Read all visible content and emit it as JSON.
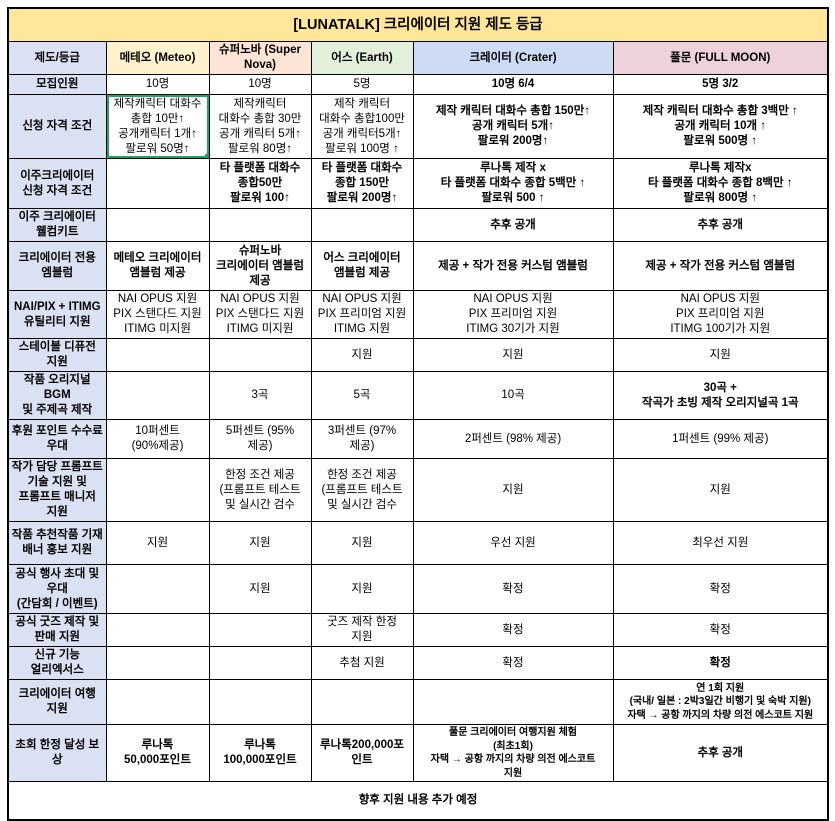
{
  "title": "[LUNATALK] 크리에이터 지원 제도 등급",
  "footer": "향후 지원 내용 추가 예정",
  "title_bg": "#FFE699",
  "selection_color": "#21A366",
  "border_color": "#000000",
  "columns": [
    {
      "key": "tier",
      "label": "제도/등급",
      "bg": "#D9E1F2"
    },
    {
      "key": "meteo",
      "label": "메테오 (Meteo)",
      "bg": "#FFF2CC"
    },
    {
      "key": "supernova",
      "label": "슈퍼노바 (Super Nova)",
      "bg": "#FCE4D6"
    },
    {
      "key": "earth",
      "label": "어스 (Earth)",
      "bg": "#E2EFDA"
    },
    {
      "key": "crater",
      "label": "크레이터 (Crater)",
      "bg": "#CDDCF4"
    },
    {
      "key": "fullmoon",
      "label": "풀문 (FULL MOON)",
      "bg": "#EDD2DC"
    }
  ],
  "rows": [
    {
      "key": "recruit-count",
      "label": "모집인원",
      "cells": [
        {
          "text": "10명"
        },
        {
          "text": "10명"
        },
        {
          "text": "5명"
        },
        {
          "text": "10명 6/4",
          "bold": true
        },
        {
          "text": "5명 3/2",
          "bold": true
        }
      ]
    },
    {
      "key": "eligibility",
      "label": "신청 자격 조건",
      "cells": [
        {
          "text": "제작캐릭터 대화수\n총합 10만↑\n공개캐릭터 1개↑\n팔로워 50명↑",
          "selected": true
        },
        {
          "text": "제작캐릭터\n대화수 총합 30만\n공개 캐릭터 5개↑\n팔로워 80명↑"
        },
        {
          "text": "제작 캐릭터\n대화수 총합100만\n공개 캐릭터5개↑\n팔로워 100명 ↑"
        },
        {
          "text": "제작 캐릭터 대화수 총합 150만↑\n공개 캐릭터 5개↑\n팔로워 200명↑",
          "bold": true
        },
        {
          "text": "제작 캐릭터 대화수 총합 3백만 ↑\n공개 캐릭터 10개 ↑\n팔로워 500명 ↑",
          "bold": true
        }
      ]
    },
    {
      "key": "migrating-creator-eligibility",
      "label": "이주크리에이터\n신청 자격 조건",
      "cells": [
        {
          "text": ""
        },
        {
          "text": "타 플랫폼 대화수\n종합50만\n팔로워 100↑",
          "bold": true
        },
        {
          "text": "타 플랫폼 대화수\n종합 150만\n팔로워 200명↑",
          "bold": true
        },
        {
          "text": "루나톡 제작 x\n타 플랫폼 대화수 종합 5백만 ↑\n팔로워 500 ↑",
          "bold": true
        },
        {
          "text": "루나톡 제작x\n타 플랫폼 대화수 종합 8백만 ↑\n팔로워 800명 ↑",
          "bold": true
        }
      ]
    },
    {
      "key": "migrating-creator-welcome-kit",
      "label": "이주 크리에이터\n웰컴키트",
      "cells": [
        {
          "text": ""
        },
        {
          "text": ""
        },
        {
          "text": ""
        },
        {
          "text": "추후 공개",
          "bold": true
        },
        {
          "text": "추후 공개",
          "bold": true
        }
      ]
    },
    {
      "key": "creator-emblem",
      "label": "크리에이터 전용\n엠블럼",
      "cells": [
        {
          "text": "메테오 크리에이터\n앰블럼 제공",
          "bold": true
        },
        {
          "text": "슈퍼노바\n크리에이터 앰블럼\n제공",
          "bold": true
        },
        {
          "text": "어스 크리에이터\n앰블럼 제공",
          "bold": true
        },
        {
          "text": "제공 + 작가 전용 커스텀 앰블럼",
          "bold": true
        },
        {
          "text": "제공 + 작가 전용 커스텀 앰블럼",
          "bold": true
        }
      ]
    },
    {
      "key": "nai-pix-itimg-utility",
      "label": "NAI/PIX + ITIMG\n유틸리티 지원",
      "cells": [
        {
          "text": "NAI OPUS 지원\nPIX 스탠다드 지원\nITIMG 미지원"
        },
        {
          "text": "NAI OPUS 지원\nPIX 스탠다드 지원\nITIMG 미지원"
        },
        {
          "text": "NAI OPUS 지원\nPIX 프리미엄 지원\nITIMG 지원"
        },
        {
          "text": "NAI OPUS 지원\nPIX 프리미엄 지원\nITIMG  30기가 지원"
        },
        {
          "text": "NAI OPUS 지원\nPIX 프리미엄 지원\nITIMG 100기가 지원"
        }
      ]
    },
    {
      "key": "stable-diffusion",
      "label": "스테이블 디퓨전\n지원",
      "cells": [
        {
          "text": ""
        },
        {
          "text": ""
        },
        {
          "text": "지원"
        },
        {
          "text": "지원"
        },
        {
          "text": "지원"
        }
      ]
    },
    {
      "key": "original-bgm",
      "label": "작품 오리지널 BGM\n및 주제곡 제작",
      "cells": [
        {
          "text": ""
        },
        {
          "text": "3곡"
        },
        {
          "text": "5곡"
        },
        {
          "text": "10곡"
        },
        {
          "text": "30곡 +\n작곡가 초빙 제작 오리지널곡 1곡",
          "bold": true
        }
      ]
    },
    {
      "key": "donation-fee-benefit",
      "label": "후원 포인트 수수료\n우대",
      "cells": [
        {
          "text": "10퍼센트\n(90%제공)"
        },
        {
          "text": "5퍼센트 (95%\n제공)"
        },
        {
          "text": "3퍼센트 (97%\n제공)"
        },
        {
          "text": "2퍼센트 (98% 제공)"
        },
        {
          "text": "1퍼센트  (99% 제공)"
        }
      ]
    },
    {
      "key": "prompt-manager-support",
      "label": "작가 담당 프롬프트\n기술 지원 및\n프롬프트 매니저\n지원",
      "cells": [
        {
          "text": ""
        },
        {
          "text": "한정 조건 제공\n(프롬프트 테스트\n및 실시간 검수"
        },
        {
          "text": "한정 조건 제공\n(프롬프트 테스트\n및 실시간 검수"
        },
        {
          "text": "지원"
        },
        {
          "text": "지원"
        }
      ]
    },
    {
      "key": "banner-promotion",
      "label": "작품 추천작품 기재\n배너 홍보 지원",
      "cells": [
        {
          "text": "지원"
        },
        {
          "text": "지원"
        },
        {
          "text": "지원"
        },
        {
          "text": "우선 지원"
        },
        {
          "text": "최우선 지원"
        }
      ]
    },
    {
      "key": "official-event-invite",
      "label": "공식 행사 초대 및\n우대\n(간담회 / 이벤트)",
      "cells": [
        {
          "text": ""
        },
        {
          "text": "지원"
        },
        {
          "text": "지원"
        },
        {
          "text": "확정"
        },
        {
          "text": "확정"
        }
      ]
    },
    {
      "key": "official-goods",
      "label": "공식 굿즈 제작 및\n판매 지원",
      "cells": [
        {
          "text": ""
        },
        {
          "text": ""
        },
        {
          "text": "굿즈 제작 한정\n지원"
        },
        {
          "text": "확정"
        },
        {
          "text": "확정"
        }
      ]
    },
    {
      "key": "new-feature-early-access",
      "label": "신규 기능\n얼리엑서스",
      "cells": [
        {
          "text": ""
        },
        {
          "text": ""
        },
        {
          "text": "추첨 지원"
        },
        {
          "text": "확정"
        },
        {
          "text": "확정",
          "bold": true
        }
      ]
    },
    {
      "key": "creator-trip",
      "label": "크리에이터 여행\n지원",
      "cells": [
        {
          "text": ""
        },
        {
          "text": ""
        },
        {
          "text": ""
        },
        {
          "text": ""
        },
        {
          "text": "연 1회 지원\n(국내/ 일본 : 2박3일간 비행기 및 숙박 지원)\n자택 → 공항 까지의 차량 의전 에스코트 지원",
          "bold": true,
          "small": true
        }
      ]
    },
    {
      "key": "first-achievement-reward",
      "label": "초회 한정 달성 보상",
      "cells": [
        {
          "text": "루나톡\n50,000포인트",
          "bold": true
        },
        {
          "text": "루나톡\n100,000포인트",
          "bold": true
        },
        {
          "text": "루나톡200,000포\n인트",
          "bold": true
        },
        {
          "text": "풀문 크리에이터 여행지원 체험\n(최초1회)\n자택 → 공항 까지의 차량 의전 에스코트\n지원",
          "bold": true,
          "small": true
        },
        {
          "text": "추후 공개",
          "bold": true
        }
      ]
    }
  ]
}
